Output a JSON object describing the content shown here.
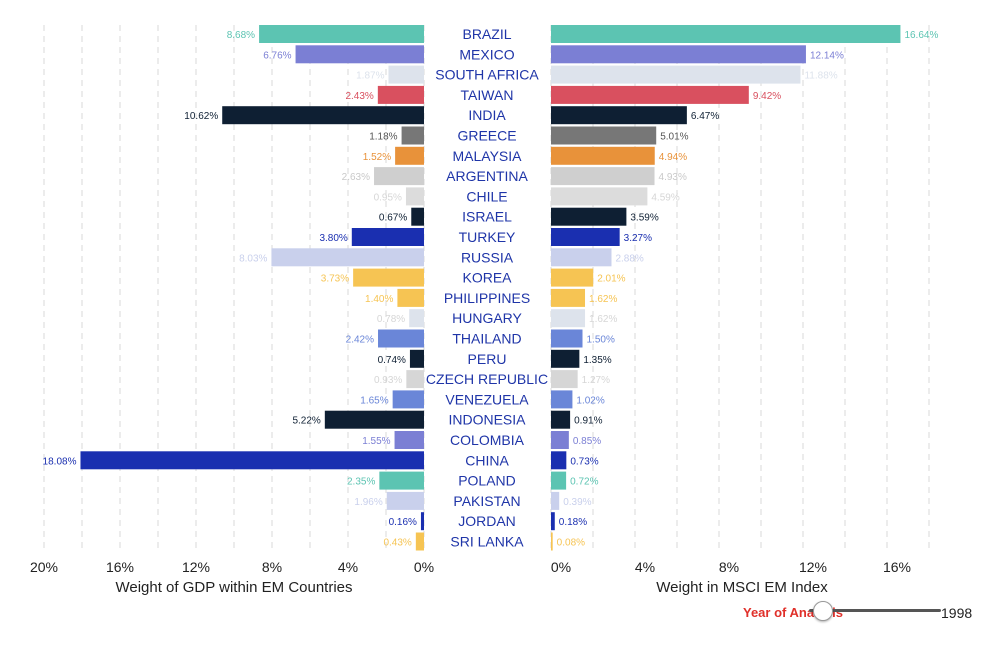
{
  "chart_data": {
    "type": "bar",
    "layout": "butterfly",
    "categories": [
      "BRAZIL",
      "MEXICO",
      "SOUTH AFRICA",
      "TAIWAN",
      "INDIA",
      "GREECE",
      "MALAYSIA",
      "ARGENTINA",
      "CHILE",
      "ISRAEL",
      "TURKEY",
      "RUSSIA",
      "KOREA",
      "PHILIPPINES",
      "HUNGARY",
      "THAILAND",
      "PERU",
      "CZECH REPUBLIC",
      "VENEZUELA",
      "INDONESIA",
      "COLOMBIA",
      "CHINA",
      "POLAND",
      "PAKISTAN",
      "JORDAN",
      "SRI LANKA"
    ],
    "series": [
      {
        "axis_title": "Weight of GDP within EM Countries",
        "values": [
          8.68,
          6.76,
          1.87,
          2.43,
          10.62,
          1.18,
          1.52,
          2.63,
          0.95,
          0.67,
          3.8,
          8.03,
          3.73,
          1.4,
          0.78,
          2.42,
          0.74,
          0.93,
          1.65,
          5.22,
          1.55,
          18.08,
          2.35,
          1.96,
          0.16,
          0.43
        ],
        "labels": [
          "8.68%",
          "6.76%",
          "1.87%",
          "2.43%",
          "10.62%",
          "1.18%",
          "1.52%",
          "2.63%",
          "0.95%",
          "0.67%",
          "3.80%",
          "8.03%",
          "3.73%",
          "1.40%",
          "0.78%",
          "2.42%",
          "0.74%",
          "0.93%",
          "1.65%",
          "5.22%",
          "1.55%",
          "18.08%",
          "2.35%",
          "1.96%",
          "0.16%",
          "0.43%"
        ],
        "xlim": [
          0,
          20
        ],
        "ticks": [
          "20%",
          "16%",
          "12%",
          "8%",
          "4%",
          "0%"
        ],
        "tick_values": [
          20,
          16,
          12,
          8,
          4,
          0
        ]
      },
      {
        "axis_title": "Weight in MSCI EM Index",
        "values": [
          16.64,
          12.14,
          11.88,
          9.42,
          6.47,
          5.01,
          4.94,
          4.93,
          4.59,
          3.59,
          3.27,
          2.88,
          2.01,
          1.62,
          1.62,
          1.5,
          1.35,
          1.27,
          1.02,
          0.91,
          0.85,
          0.73,
          0.72,
          0.39,
          0.18,
          0.08
        ],
        "labels": [
          "16.64%",
          "12.14%",
          "11.88%",
          "9.42%",
          "6.47%",
          "5.01%",
          "4.94%",
          "4.93%",
          "4.59%",
          "3.59%",
          "3.27%",
          "2.88%",
          "2.01%",
          "1.62%",
          "1.62%",
          "1.50%",
          "1.35%",
          "1.27%",
          "1.02%",
          "0.91%",
          "0.85%",
          "0.73%",
          "0.72%",
          "0.39%",
          "0.18%",
          "0.08%"
        ],
        "xlim": [
          0,
          18
        ],
        "ticks": [
          "0%",
          "4%",
          "8%",
          "12%",
          "16%"
        ],
        "tick_values": [
          0,
          4,
          8,
          12,
          16
        ]
      }
    ],
    "colors": [
      "#5cc4b2",
      "#7b7fd4",
      "#dde3ec",
      "#d9505f",
      "#0e1f33",
      "#777777",
      "#e8923a",
      "#cfcfcf",
      "#dcdcdc",
      "#0e1f33",
      "#1a2fb0",
      "#c9d0ec",
      "#f6c453",
      "#f6c453",
      "#dde3ec",
      "#6a86d8",
      "#0e1f33",
      "#d6d6d6",
      "#6a86d8",
      "#0e1f33",
      "#7b7fd4",
      "#1a2fb0",
      "#5cc4b2",
      "#c9d0ec",
      "#1a2fb0",
      "#f6c453"
    ],
    "label_colors": [
      "#5cc4b2",
      "#7b7fd4",
      "#dde3ec",
      "#d9505f",
      "#0e1f33",
      "#555555",
      "#e8923a",
      "#c9c9c9",
      "#d6d6d6",
      "#0e1f33",
      "#1a2fb0",
      "#c9d0ec",
      "#f6c453",
      "#f6c453",
      "#d6d6d6",
      "#6a86d8",
      "#0e1f33",
      "#d6d6d6",
      "#6a86d8",
      "#0e1f33",
      "#7b7fd4",
      "#1a2fb0",
      "#5cc4b2",
      "#c9d0ec",
      "#1a2fb0",
      "#f6c453"
    ],
    "grid": true
  },
  "controls": {
    "year_label": "Year of Analysis",
    "year_value": "1998",
    "slider_fraction": 0.1
  }
}
